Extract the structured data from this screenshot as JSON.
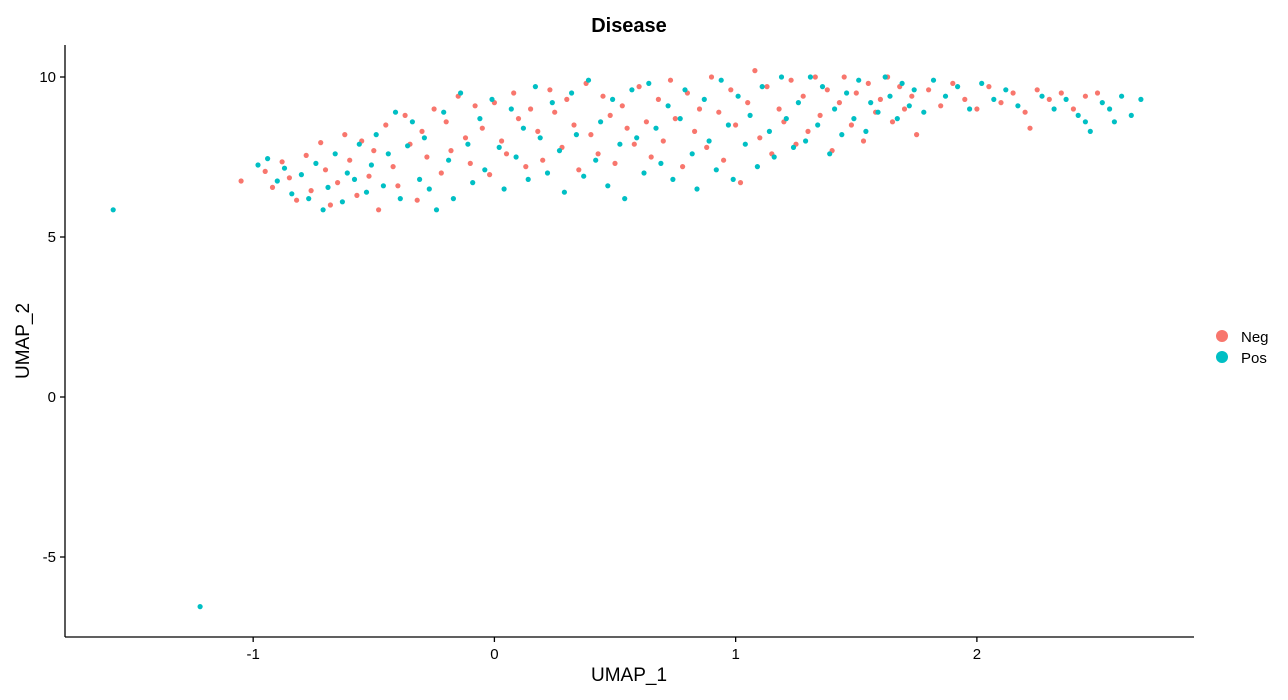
{
  "chart_data": {
    "type": "scatter",
    "title": "Disease",
    "xlabel": "UMAP_1",
    "ylabel": "UMAP_2",
    "xlim": [
      -1.78,
      2.9
    ],
    "ylim": [
      -7.5,
      11.0
    ],
    "xticks": [
      -1,
      0,
      1,
      2
    ],
    "yticks": [
      -5,
      0,
      5,
      10
    ],
    "xtick_labels": [
      "-1",
      "0",
      "1",
      "2"
    ],
    "ytick_labels": [
      "-5",
      "0",
      "5",
      "10"
    ],
    "grid": false,
    "legend_position": "right",
    "series": [
      {
        "name": "Neg",
        "color": "#F8766D",
        "points": [
          [
            -1.05,
            6.75
          ],
          [
            -0.95,
            7.05
          ],
          [
            -0.92,
            6.55
          ],
          [
            -0.88,
            7.35
          ],
          [
            -0.85,
            6.85
          ],
          [
            -0.82,
            6.15
          ],
          [
            -0.78,
            7.55
          ],
          [
            -0.76,
            6.45
          ],
          [
            -0.72,
            7.95
          ],
          [
            -0.7,
            7.1
          ],
          [
            -0.68,
            6.0
          ],
          [
            -0.65,
            6.7
          ],
          [
            -0.62,
            8.2
          ],
          [
            -0.6,
            7.4
          ],
          [
            -0.57,
            6.3
          ],
          [
            -0.55,
            8.0
          ],
          [
            -0.52,
            6.9
          ],
          [
            -0.5,
            7.7
          ],
          [
            -0.48,
            5.85
          ],
          [
            -0.45,
            8.5
          ],
          [
            -0.42,
            7.2
          ],
          [
            -0.4,
            6.6
          ],
          [
            -0.37,
            8.8
          ],
          [
            -0.35,
            7.9
          ],
          [
            -0.32,
            6.15
          ],
          [
            -0.3,
            8.3
          ],
          [
            -0.28,
            7.5
          ],
          [
            -0.25,
            9.0
          ],
          [
            -0.22,
            7.0
          ],
          [
            -0.2,
            8.6
          ],
          [
            -0.18,
            7.7
          ],
          [
            -0.15,
            9.4
          ],
          [
            -0.12,
            8.1
          ],
          [
            -0.1,
            7.3
          ],
          [
            -0.08,
            9.1
          ],
          [
            -0.05,
            8.4
          ],
          [
            -0.02,
            6.95
          ],
          [
            0.0,
            9.2
          ],
          [
            0.03,
            8.0
          ],
          [
            0.05,
            7.6
          ],
          [
            0.08,
            9.5
          ],
          [
            0.1,
            8.7
          ],
          [
            0.13,
            7.2
          ],
          [
            0.15,
            9.0
          ],
          [
            0.18,
            8.3
          ],
          [
            0.2,
            7.4
          ],
          [
            0.23,
            9.6
          ],
          [
            0.25,
            8.9
          ],
          [
            0.28,
            7.8
          ],
          [
            0.3,
            9.3
          ],
          [
            0.33,
            8.5
          ],
          [
            0.35,
            7.1
          ],
          [
            0.38,
            9.8
          ],
          [
            0.4,
            8.2
          ],
          [
            0.43,
            7.6
          ],
          [
            0.45,
            9.4
          ],
          [
            0.48,
            8.8
          ],
          [
            0.5,
            7.3
          ],
          [
            0.53,
            9.1
          ],
          [
            0.55,
            8.4
          ],
          [
            0.58,
            7.9
          ],
          [
            0.6,
            9.7
          ],
          [
            0.63,
            8.6
          ],
          [
            0.65,
            7.5
          ],
          [
            0.68,
            9.3
          ],
          [
            0.7,
            8.0
          ],
          [
            0.73,
            9.9
          ],
          [
            0.75,
            8.7
          ],
          [
            0.78,
            7.2
          ],
          [
            0.8,
            9.5
          ],
          [
            0.83,
            8.3
          ],
          [
            0.85,
            9.0
          ],
          [
            0.88,
            7.8
          ],
          [
            0.9,
            10.0
          ],
          [
            0.93,
            8.9
          ],
          [
            0.95,
            7.4
          ],
          [
            0.98,
            9.6
          ],
          [
            1.0,
            8.5
          ],
          [
            1.02,
            6.7
          ],
          [
            1.05,
            9.2
          ],
          [
            1.08,
            10.2
          ],
          [
            1.1,
            8.1
          ],
          [
            1.13,
            9.7
          ],
          [
            1.15,
            7.6
          ],
          [
            1.18,
            9.0
          ],
          [
            1.2,
            8.6
          ],
          [
            1.23,
            9.9
          ],
          [
            1.25,
            7.9
          ],
          [
            1.28,
            9.4
          ],
          [
            1.3,
            8.3
          ],
          [
            1.33,
            10.0
          ],
          [
            1.35,
            8.8
          ],
          [
            1.38,
            9.6
          ],
          [
            1.4,
            7.7
          ],
          [
            1.43,
            9.2
          ],
          [
            1.45,
            10.0
          ],
          [
            1.48,
            8.5
          ],
          [
            1.5,
            9.5
          ],
          [
            1.53,
            8.0
          ],
          [
            1.55,
            9.8
          ],
          [
            1.58,
            8.9
          ],
          [
            1.6,
            9.3
          ],
          [
            1.63,
            10.0
          ],
          [
            1.65,
            8.6
          ],
          [
            1.68,
            9.7
          ],
          [
            1.7,
            9.0
          ],
          [
            1.73,
            9.4
          ],
          [
            1.75,
            8.2
          ],
          [
            1.8,
            9.6
          ],
          [
            1.85,
            9.1
          ],
          [
            1.9,
            9.8
          ],
          [
            1.95,
            9.3
          ],
          [
            2.0,
            9.0
          ],
          [
            2.05,
            9.7
          ],
          [
            2.1,
            9.2
          ],
          [
            2.15,
            9.5
          ],
          [
            2.2,
            8.9
          ],
          [
            2.25,
            9.6
          ],
          [
            2.3,
            9.3
          ],
          [
            2.35,
            9.5
          ],
          [
            2.4,
            9.0
          ],
          [
            2.45,
            9.4
          ],
          [
            2.5,
            9.5
          ],
          [
            2.22,
            8.4
          ]
        ]
      },
      {
        "name": "Pos",
        "color": "#00BFC4",
        "points": [
          [
            -1.58,
            5.85
          ],
          [
            -1.22,
            -6.55
          ],
          [
            -0.98,
            7.25
          ],
          [
            -0.94,
            7.45
          ],
          [
            -0.9,
            6.75
          ],
          [
            -0.87,
            7.15
          ],
          [
            -0.84,
            6.35
          ],
          [
            -0.8,
            6.95
          ],
          [
            -0.77,
            6.2
          ],
          [
            -0.74,
            7.3
          ],
          [
            -0.71,
            5.85
          ],
          [
            -0.69,
            6.55
          ],
          [
            -0.66,
            7.6
          ],
          [
            -0.63,
            6.1
          ],
          [
            -0.61,
            7.0
          ],
          [
            -0.58,
            6.8
          ],
          [
            -0.56,
            7.9
          ],
          [
            -0.53,
            6.4
          ],
          [
            -0.51,
            7.25
          ],
          [
            -0.49,
            8.2
          ],
          [
            -0.46,
            6.6
          ],
          [
            -0.44,
            7.6
          ],
          [
            -0.41,
            8.9
          ],
          [
            -0.39,
            6.2
          ],
          [
            -0.36,
            7.85
          ],
          [
            -0.34,
            8.6
          ],
          [
            -0.31,
            6.8
          ],
          [
            -0.29,
            8.1
          ],
          [
            -0.27,
            6.5
          ],
          [
            -0.24,
            5.85
          ],
          [
            -0.21,
            8.9
          ],
          [
            -0.19,
            7.4
          ],
          [
            -0.17,
            6.2
          ],
          [
            -0.14,
            9.5
          ],
          [
            -0.11,
            7.9
          ],
          [
            -0.09,
            6.7
          ],
          [
            -0.06,
            8.7
          ],
          [
            -0.04,
            7.1
          ],
          [
            -0.01,
            9.3
          ],
          [
            0.02,
            7.8
          ],
          [
            0.04,
            6.5
          ],
          [
            0.07,
            9.0
          ],
          [
            0.09,
            7.5
          ],
          [
            0.12,
            8.4
          ],
          [
            0.14,
            6.8
          ],
          [
            0.17,
            9.7
          ],
          [
            0.19,
            8.1
          ],
          [
            0.22,
            7.0
          ],
          [
            0.24,
            9.2
          ],
          [
            0.27,
            7.7
          ],
          [
            0.29,
            6.4
          ],
          [
            0.32,
            9.5
          ],
          [
            0.34,
            8.2
          ],
          [
            0.37,
            6.9
          ],
          [
            0.39,
            9.9
          ],
          [
            0.42,
            7.4
          ],
          [
            0.44,
            8.6
          ],
          [
            0.47,
            6.6
          ],
          [
            0.49,
            9.3
          ],
          [
            0.52,
            7.9
          ],
          [
            0.54,
            6.2
          ],
          [
            0.57,
            9.6
          ],
          [
            0.59,
            8.1
          ],
          [
            0.62,
            7.0
          ],
          [
            0.64,
            9.8
          ],
          [
            0.67,
            8.4
          ],
          [
            0.69,
            7.3
          ],
          [
            0.72,
            9.1
          ],
          [
            0.74,
            6.8
          ],
          [
            0.77,
            8.7
          ],
          [
            0.79,
            9.6
          ],
          [
            0.82,
            7.6
          ],
          [
            0.84,
            6.5
          ],
          [
            0.87,
            9.3
          ],
          [
            0.89,
            8.0
          ],
          [
            0.92,
            7.1
          ],
          [
            0.94,
            9.9
          ],
          [
            0.97,
            8.5
          ],
          [
            0.99,
            6.8
          ],
          [
            1.01,
            9.4
          ],
          [
            1.04,
            7.9
          ],
          [
            1.06,
            8.8
          ],
          [
            1.09,
            7.2
          ],
          [
            1.11,
            9.7
          ],
          [
            1.14,
            8.3
          ],
          [
            1.16,
            7.5
          ],
          [
            1.19,
            10.0
          ],
          [
            1.21,
            8.7
          ],
          [
            1.24,
            7.8
          ],
          [
            1.26,
            9.2
          ],
          [
            1.29,
            8.0
          ],
          [
            1.31,
            10.0
          ],
          [
            1.34,
            8.5
          ],
          [
            1.36,
            9.7
          ],
          [
            1.39,
            7.6
          ],
          [
            1.41,
            9.0
          ],
          [
            1.44,
            8.2
          ],
          [
            1.46,
            9.5
          ],
          [
            1.49,
            8.7
          ],
          [
            1.51,
            9.9
          ],
          [
            1.54,
            8.3
          ],
          [
            1.56,
            9.2
          ],
          [
            1.59,
            8.9
          ],
          [
            1.62,
            10.0
          ],
          [
            1.64,
            9.4
          ],
          [
            1.67,
            8.7
          ],
          [
            1.69,
            9.8
          ],
          [
            1.72,
            9.1
          ],
          [
            1.74,
            9.6
          ],
          [
            1.78,
            8.9
          ],
          [
            1.82,
            9.9
          ],
          [
            1.87,
            9.4
          ],
          [
            1.92,
            9.7
          ],
          [
            1.97,
            9.0
          ],
          [
            2.02,
            9.8
          ],
          [
            2.07,
            9.3
          ],
          [
            2.12,
            9.6
          ],
          [
            2.17,
            9.1
          ],
          [
            2.27,
            9.4
          ],
          [
            2.32,
            9.0
          ],
          [
            2.37,
            9.3
          ],
          [
            2.42,
            8.8
          ],
          [
            2.47,
            8.3
          ],
          [
            2.52,
            9.2
          ],
          [
            2.57,
            8.6
          ],
          [
            2.6,
            9.4
          ],
          [
            2.64,
            8.8
          ],
          [
            2.68,
            9.3
          ],
          [
            2.55,
            9.0
          ],
          [
            2.45,
            8.6
          ]
        ]
      }
    ]
  }
}
